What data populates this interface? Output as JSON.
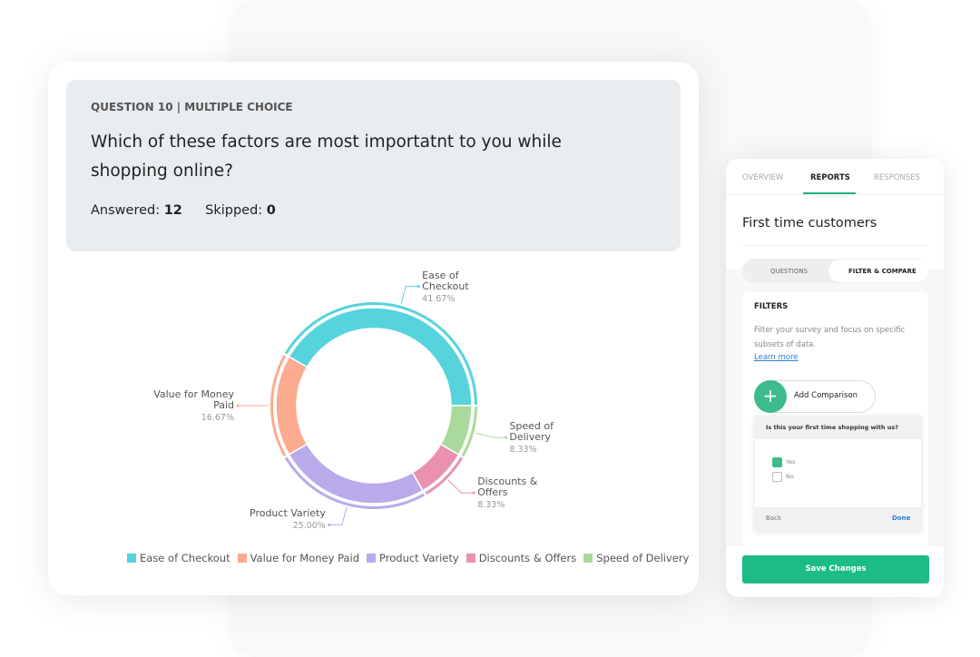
{
  "question": {
    "kicker": "QUESTION 10 | MULTIPLE CHOICE",
    "text": "Which of these factors are most importatnt to you while shopping online?",
    "answered_label": "Answered:",
    "answered": 12,
    "skipped_label": "Skipped:",
    "skipped": 0
  },
  "chart_data": {
    "type": "pie",
    "donut": true,
    "categories": [
      "Ease of Checkout",
      "Value for Money Paid",
      "Product Variety",
      "Discounts & Offers",
      "Speed of Delivery"
    ],
    "values": [
      41.67,
      16.67,
      25,
      8.33,
      8.33
    ],
    "value_labels": [
      "41.67%",
      "16.67%",
      "25.00%",
      "8.33%",
      "8.33%"
    ],
    "colors": [
      "#56d3dc",
      "#fcab8f",
      "#b9aaea",
      "#ea90b1",
      "#a9da9c"
    ],
    "legend": "bottom"
  },
  "panel": {
    "tabs": [
      "OVERVIEW",
      "REPORTS",
      "RESPONSES"
    ],
    "title": "First time customers",
    "toggle": [
      "QUESTIONS",
      "FILTER & COMPARE"
    ],
    "filters_heading": "FILTERS",
    "filters_text": "Filter your survey and focus on specific subsets of data.",
    "learn_more": "Learn more",
    "add_comparison": "Add Comparison",
    "filter_question": "Is this your first time shopping with us?",
    "options": [
      "Yes",
      "No"
    ],
    "back": "Back",
    "done": "Done",
    "save": "Save Changes"
  }
}
